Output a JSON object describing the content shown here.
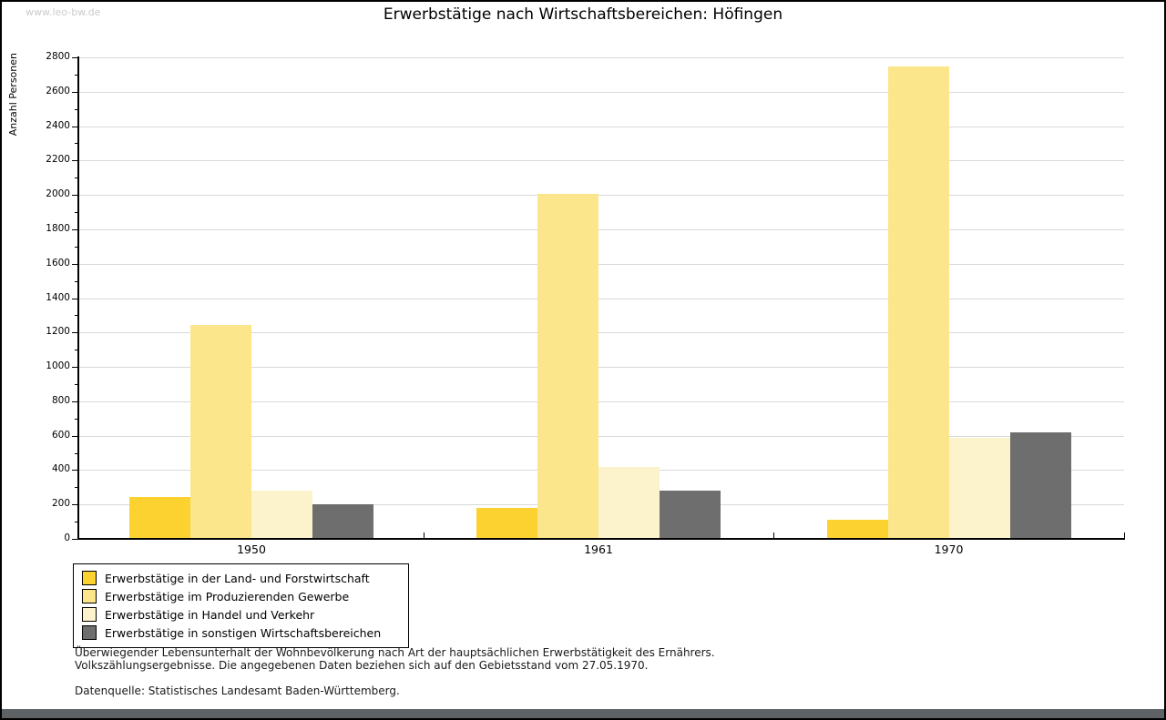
{
  "watermark": "www.leo-bw.de",
  "title": "Erwerbstätige nach Wirtschaftsbereichen: Höfingen",
  "chart_data": {
    "type": "bar",
    "title": "Erwerbstätige nach Wirtschaftsbereichen: Höfingen",
    "xlabel": "",
    "ylabel": "Anzahl Personen",
    "ylim": [
      0,
      2800
    ],
    "ytick_step": 200,
    "y_minor_tick_step": 100,
    "grid": true,
    "legend_position": "bottom-left",
    "categories": [
      "1950",
      "1961",
      "1970"
    ],
    "series": [
      {
        "name": "Erwerbstätige in der Land- und Forstwirtschaft",
        "color": "#fbd22f",
        "values": [
          245,
          180,
          110
        ]
      },
      {
        "name": "Erwerbstätige im Produzierenden Gewerbe",
        "color": "#fbe68c",
        "values": [
          1245,
          2005,
          2745
        ]
      },
      {
        "name": "Erwerbstätige in Handel und Verkehr",
        "color": "#fcf3cc",
        "values": [
          280,
          420,
          590
        ]
      },
      {
        "name": "Erwerbstätige in sonstigen Wirtschaftsbereichen",
        "color": "#6e6e6e",
        "values": [
          200,
          280,
          620
        ]
      }
    ]
  },
  "footer": {
    "line1": "Überwiegender Lebensunterhalt der Wohnbevölkerung nach Art der hauptsächlichen Erwerbstätigkeit des Ernährers.",
    "line2": "Volkszählungsergebnisse. Die angegebenen Daten beziehen sich auf den Gebietsstand vom 27.05.1970.",
    "source": "Datenquelle: Statistisches Landesamt Baden-Württemberg."
  },
  "colors": {
    "grid": "#d9d9d9",
    "axis": "#000000",
    "watermark": "#cbcbcb",
    "bottom_bar": "#5f6265"
  }
}
